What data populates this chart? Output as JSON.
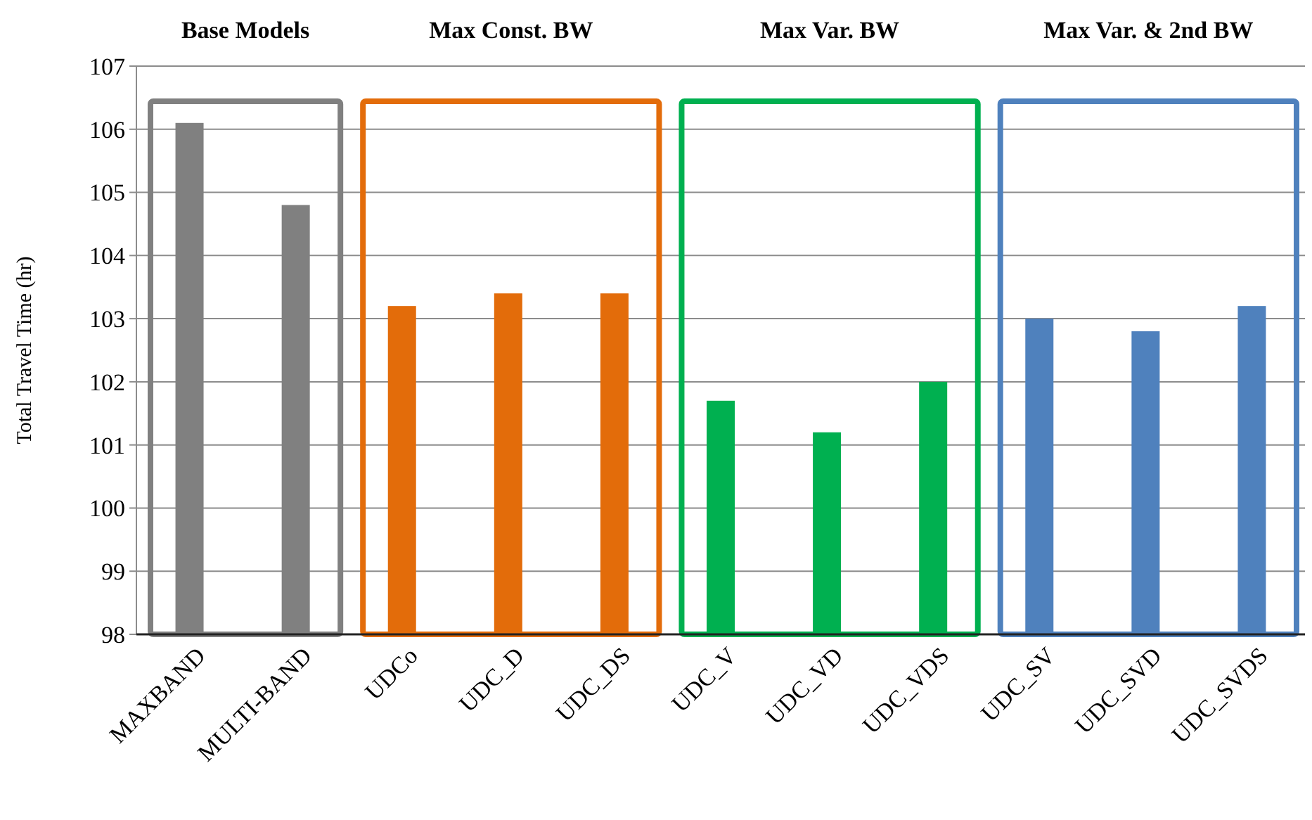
{
  "chart_data": {
    "type": "bar",
    "ylabel": "Total Travel Time (hr)",
    "categories": [
      "MAXBAND",
      "MULTI-BAND",
      "UDCo",
      "UDC_D",
      "UDC_DS",
      "UDC_V",
      "UDC_VD",
      "UDC_VDS",
      "UDC_SV",
      "UDC_SVD",
      "UDC_SVDS"
    ],
    "values": [
      106.1,
      104.8,
      103.2,
      103.4,
      103.4,
      101.7,
      101.2,
      102.0,
      103.0,
      102.8,
      103.2
    ],
    "colors": [
      "#808080",
      "#808080",
      "#e36c0a",
      "#e36c0a",
      "#e36c0a",
      "#00b050",
      "#00b050",
      "#00b050",
      "#4f81bd",
      "#4f81bd",
      "#4f81bd"
    ],
    "ylim": [
      98,
      107
    ],
    "yticks": [
      98,
      99,
      100,
      101,
      102,
      103,
      104,
      105,
      106,
      107
    ],
    "grid": "y",
    "annotations": [
      "Base Models",
      "Max Const. BW",
      "Max Var. BW",
      "Max Var. & 2nd BW"
    ]
  }
}
